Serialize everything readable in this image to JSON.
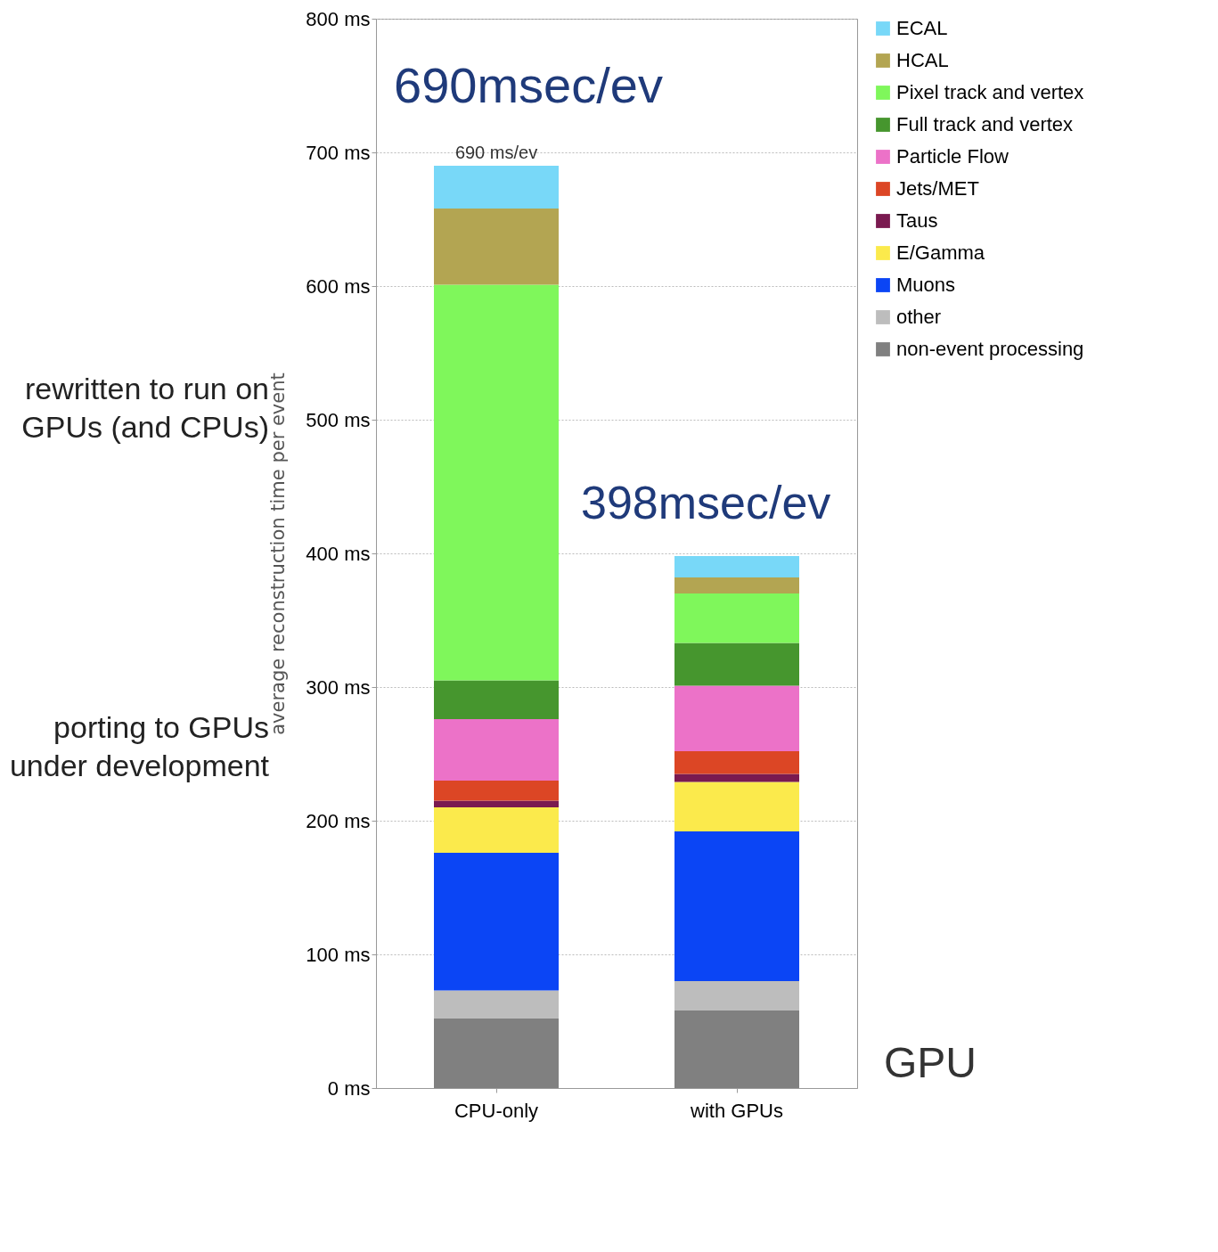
{
  "chart_data": {
    "type": "bar",
    "stacked": true,
    "ylabel": "average reconstruction time per event",
    "categories": [
      "CPU-only",
      "with GPUs"
    ],
    "series": [
      {
        "name": "non-event processing",
        "color": "#808080",
        "values": [
          52,
          58
        ]
      },
      {
        "name": "other",
        "color": "#bdbdbd",
        "values": [
          21,
          22
        ]
      },
      {
        "name": "Muons",
        "color": "#0b45f5",
        "values": [
          103,
          112
        ]
      },
      {
        "name": "E/Gamma",
        "color": "#fbea4c",
        "values": [
          34,
          37
        ]
      },
      {
        "name": "Taus",
        "color": "#7a1a50",
        "values": [
          5,
          6
        ]
      },
      {
        "name": "Jets/MET",
        "color": "#dc4625",
        "values": [
          15,
          17
        ]
      },
      {
        "name": "Particle Flow",
        "color": "#ec72c8",
        "values": [
          46,
          49
        ]
      },
      {
        "name": "Full track and vertex",
        "color": "#46962e",
        "values": [
          29,
          32
        ]
      },
      {
        "name": "Pixel track and vertex",
        "color": "#7ff75b",
        "values": [
          296,
          37
        ]
      },
      {
        "name": "HCAL",
        "color": "#b3a552",
        "values": [
          57,
          12
        ]
      },
      {
        "name": "ECAL",
        "color": "#78d8f8",
        "values": [
          32,
          16
        ]
      }
    ],
    "ylim": [
      0,
      800
    ],
    "yticks": [
      {
        "value": 0,
        "label": "0 ms"
      },
      {
        "value": 100,
        "label": "100 ms"
      },
      {
        "value": 200,
        "label": "200 ms"
      },
      {
        "value": 300,
        "label": "300 ms"
      },
      {
        "value": 400,
        "label": "400 ms"
      },
      {
        "value": 500,
        "label": "500 ms"
      },
      {
        "value": 600,
        "label": "600 ms"
      },
      {
        "value": 700,
        "label": "700 ms"
      },
      {
        "value": 800,
        "label": "800 ms"
      }
    ],
    "grid": "y",
    "legend": "right",
    "annotations": [
      {
        "text": "690 ms/ev",
        "x": "CPU-only",
        "y": 690
      },
      "690msec/ev",
      "398msec/ev",
      "rewritten to run on\nGPUs (and CPUs)",
      "porting to GPUs\nunder development",
      "GPU"
    ]
  }
}
